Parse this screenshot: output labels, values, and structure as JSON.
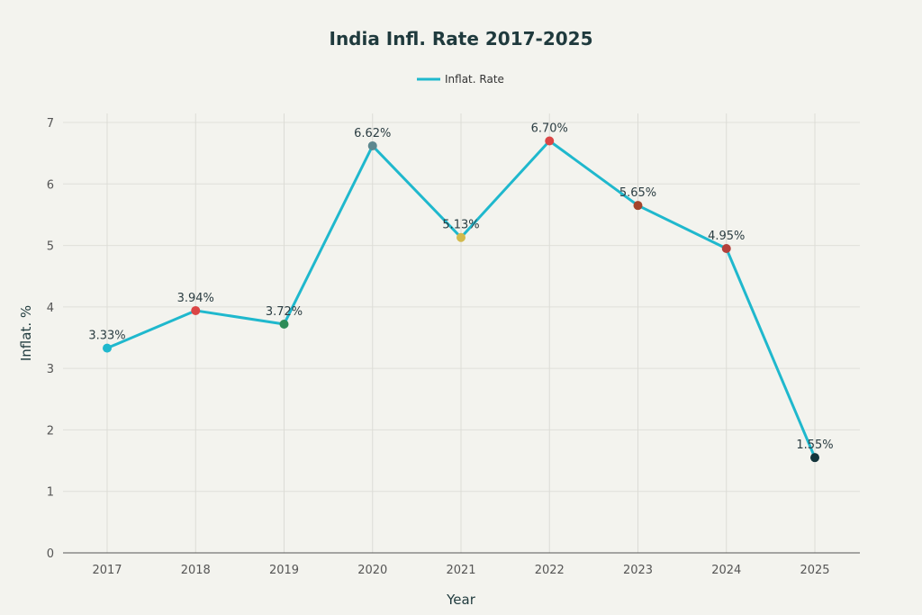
{
  "chart_data": {
    "type": "line",
    "title": "India Infl. Rate 2017-2025",
    "xlabel": "Year",
    "ylabel": "Inflat. %",
    "categories": [
      "2017",
      "2018",
      "2019",
      "2020",
      "2021",
      "2022",
      "2023",
      "2024",
      "2025"
    ],
    "series": [
      {
        "name": "Inflat. Rate",
        "values": [
          3.33,
          3.94,
          3.72,
          6.62,
          5.13,
          6.7,
          5.65,
          4.95,
          1.55
        ],
        "color": "#1fb8cd"
      }
    ],
    "data_labels": [
      "3.33%",
      "3.94%",
      "3.72%",
      "6.62%",
      "5.13%",
      "6.70%",
      "5.65%",
      "4.95%",
      "1.55%"
    ],
    "marker_colors": [
      "#1fb8cd",
      "#db4545",
      "#2e8b57",
      "#5d878f",
      "#d2ba4c",
      "#db4545",
      "#a4442c",
      "#b4413c",
      "#13343b"
    ],
    "ylim": [
      0,
      7
    ],
    "yticks": [
      "0",
      "1",
      "2",
      "3",
      "4",
      "5",
      "6",
      "7"
    ],
    "grid": true,
    "legend": "top-center"
  }
}
